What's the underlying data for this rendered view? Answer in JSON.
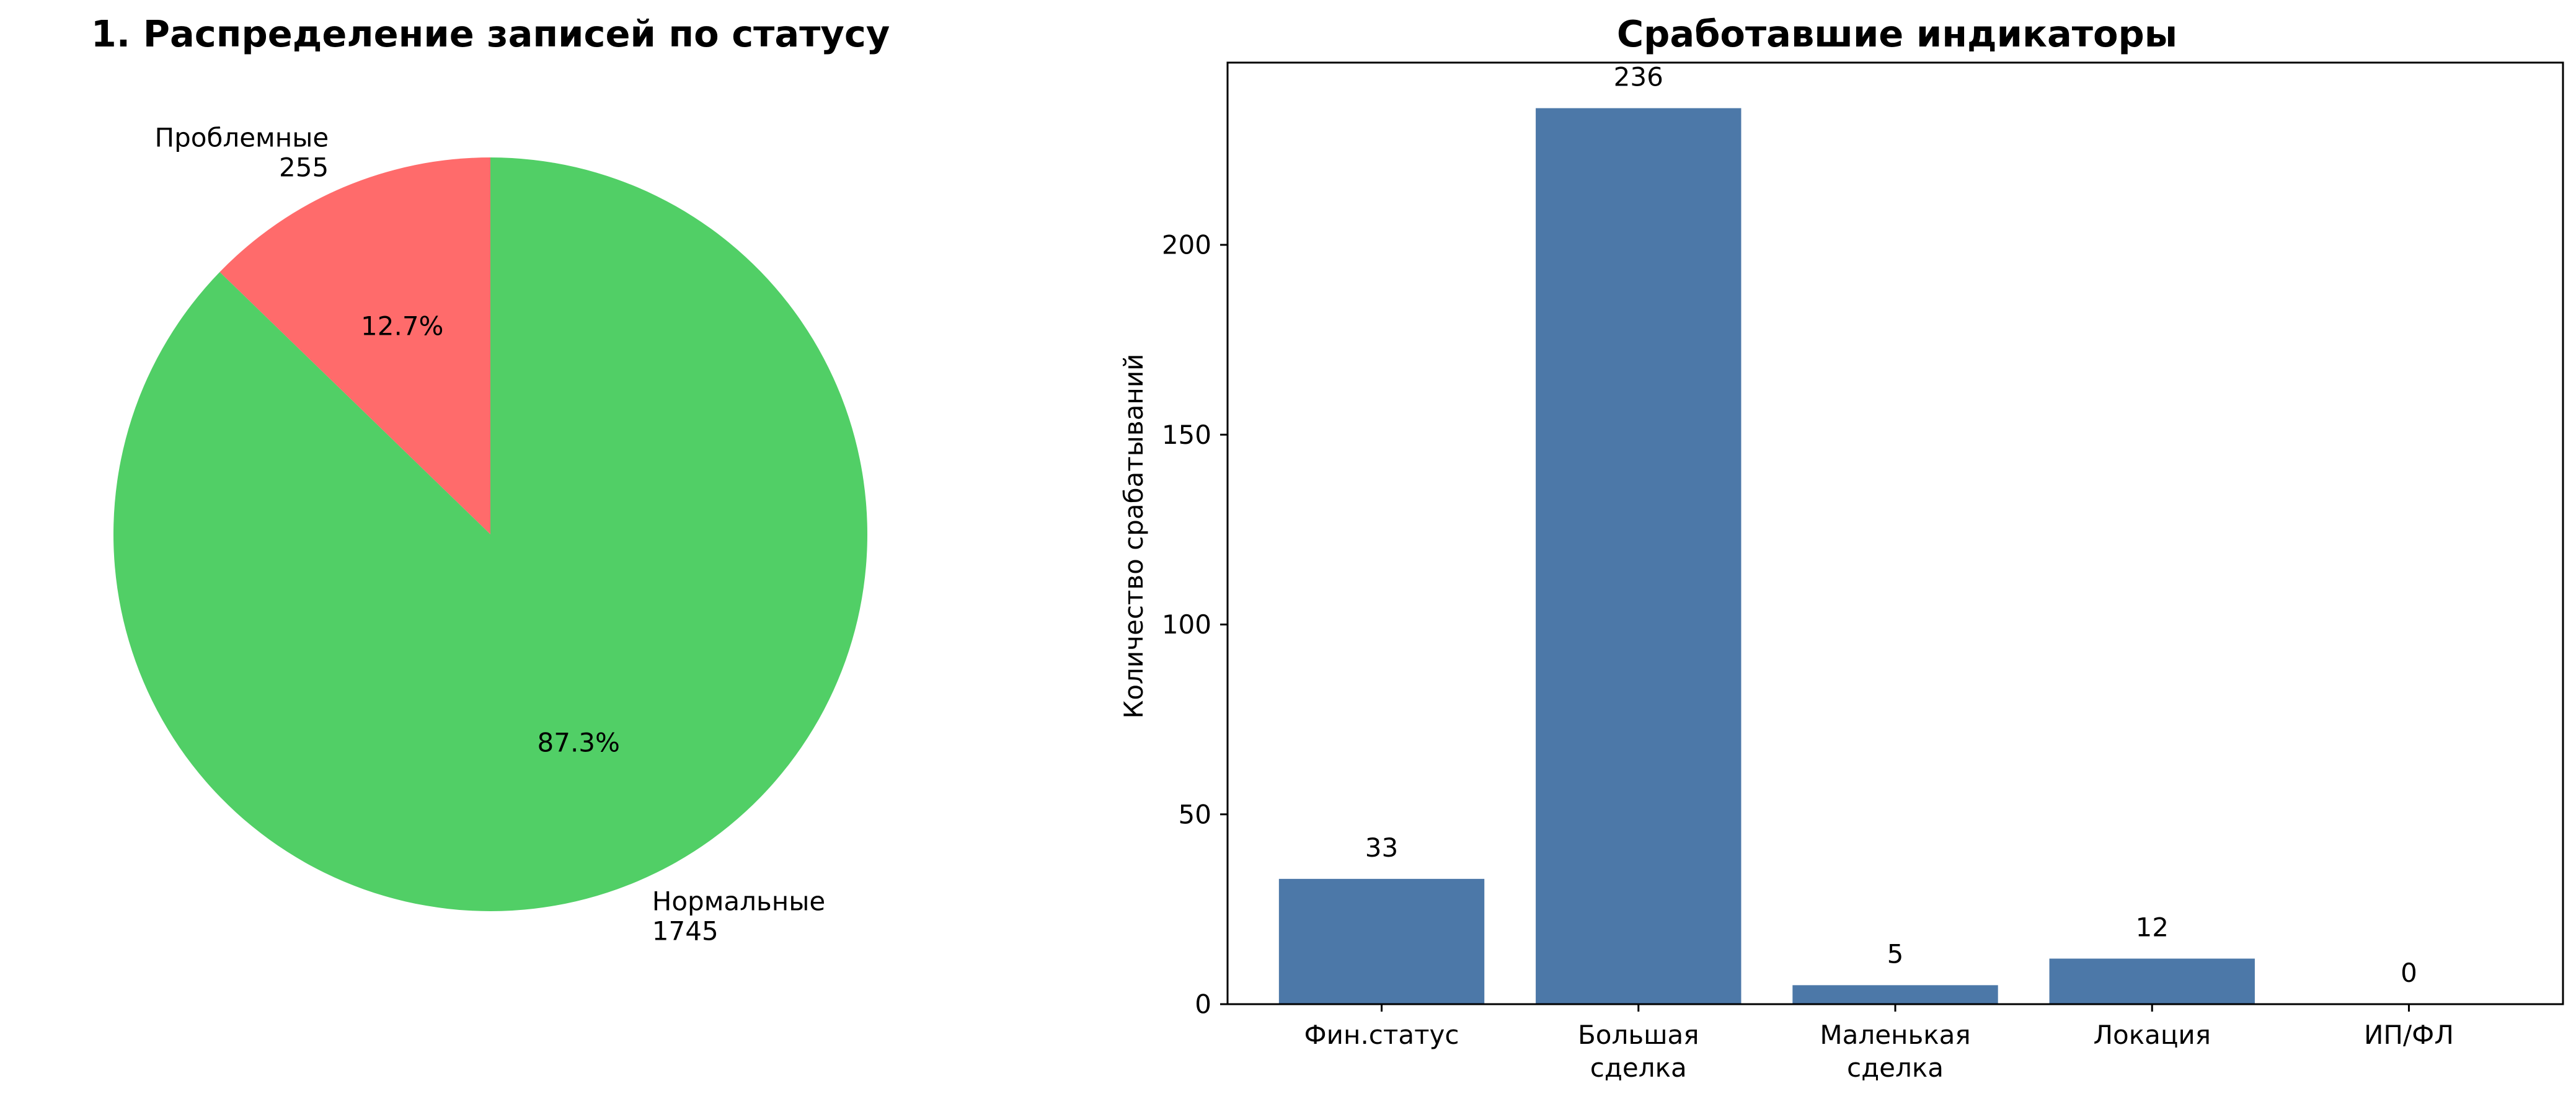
{
  "chart_data": [
    {
      "type": "pie",
      "title": "1. Распределение записей по статусу",
      "slices": [
        {
          "label": "Проблемные",
          "count_label": "255",
          "value": 255,
          "percent_label": "12.7%",
          "color": "#ff6b6b"
        },
        {
          "label": "Нормальные",
          "count_label": "1745",
          "value": 1745,
          "percent_label": "87.3%",
          "color": "#51cf66"
        }
      ],
      "start_angle_deg": 90,
      "direction": "counterclockwise"
    },
    {
      "type": "bar",
      "title": "Сработавшие индикаторы",
      "ylabel": "Количество срабатываний",
      "xlabel": "",
      "ylim": [
        0,
        248
      ],
      "yticks": [
        0,
        50,
        100,
        150,
        200
      ],
      "yticks_labels": [
        "0",
        "50",
        "100",
        "150",
        "200"
      ],
      "categories": [
        [
          "Фин.статус"
        ],
        [
          "Большая",
          "сделка"
        ],
        [
          "Маленькая",
          "сделка"
        ],
        [
          "Локация"
        ],
        [
          "ИП/ФЛ"
        ]
      ],
      "values": [
        33,
        236,
        5,
        12,
        0
      ],
      "value_labels": [
        "33",
        "236",
        "5",
        "12",
        "0"
      ],
      "bar_color": "#4c78a8",
      "grid": false
    }
  ]
}
